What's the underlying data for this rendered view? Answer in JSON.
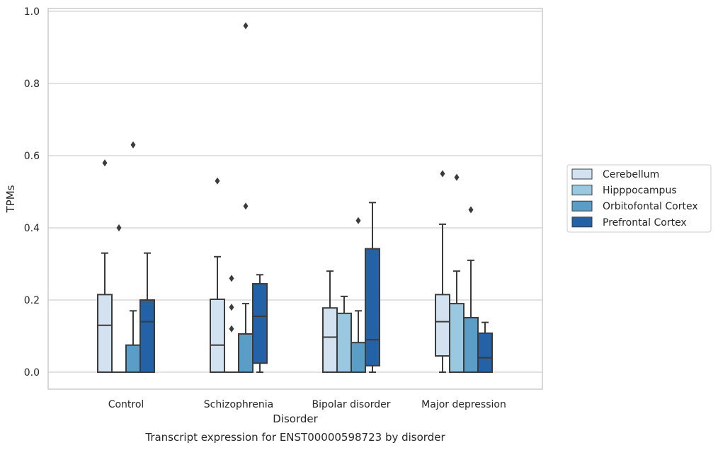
{
  "chart_data": {
    "type": "box",
    "title": "Transcript expression for ENST00000598723 by disorder",
    "xlabel": "Disorder",
    "ylabel": "TPMs",
    "ylim": [
      -0.045,
      1.01
    ],
    "yticks": [
      "0.0",
      "0.2",
      "0.4",
      "0.6",
      "0.8",
      "1.0"
    ],
    "categories": [
      "Control",
      "Schizophrenia",
      "Bipolar disorder",
      "Major depression"
    ],
    "grid": true,
    "legend_position": "right",
    "series": [
      {
        "name": "Cerebellum",
        "color": "#d2e2f1",
        "boxes": [
          {
            "min": 0.0,
            "q1": 0.0,
            "median": 0.13,
            "q3": 0.215,
            "max": 0.33,
            "outliers": [
              0.58
            ]
          },
          {
            "min": 0.0,
            "q1": 0.0,
            "median": 0.075,
            "q3": 0.202,
            "max": 0.32,
            "outliers": [
              0.53
            ]
          },
          {
            "min": 0.0,
            "q1": 0.0,
            "median": 0.097,
            "q3": 0.178,
            "max": 0.28,
            "outliers": []
          },
          {
            "min": 0.0,
            "q1": 0.045,
            "median": 0.14,
            "q3": 0.215,
            "max": 0.41,
            "outliers": [
              0.55
            ]
          }
        ]
      },
      {
        "name": "Hipppocampus",
        "color": "#9ac8e0",
        "boxes": [
          {
            "min": 0.0,
            "q1": 0.0,
            "median": 0.0,
            "q3": 0.0,
            "max": 0.0,
            "outliers": [
              0.4
            ]
          },
          {
            "min": 0.0,
            "q1": 0.0,
            "median": 0.0,
            "q3": 0.0,
            "max": 0.0,
            "outliers": [
              0.12,
              0.18,
              0.26
            ]
          },
          {
            "min": 0.0,
            "q1": 0.0,
            "median": 0.0,
            "q3": 0.163,
            "max": 0.21,
            "outliers": []
          },
          {
            "min": 0.0,
            "q1": 0.0,
            "median": 0.0,
            "q3": 0.19,
            "max": 0.28,
            "outliers": [
              0.54
            ]
          }
        ]
      },
      {
        "name": "Orbitofontal Cortex",
        "color": "#5a9ec8",
        "boxes": [
          {
            "min": 0.0,
            "q1": 0.0,
            "median": 0.0,
            "q3": 0.075,
            "max": 0.17,
            "outliers": [
              0.63
            ]
          },
          {
            "min": 0.0,
            "q1": 0.0,
            "median": 0.0,
            "q3": 0.106,
            "max": 0.19,
            "outliers": [
              0.96,
              0.46
            ]
          },
          {
            "min": 0.0,
            "q1": 0.0,
            "median": 0.0,
            "q3": 0.082,
            "max": 0.17,
            "outliers": [
              0.42
            ]
          },
          {
            "min": 0.0,
            "q1": 0.0,
            "median": 0.0,
            "q3": 0.151,
            "max": 0.31,
            "outliers": [
              0.45
            ]
          }
        ]
      },
      {
        "name": "Prefrontal Cortex",
        "color": "#2462a7",
        "boxes": [
          {
            "min": 0.0,
            "q1": 0.0,
            "median": 0.14,
            "q3": 0.2,
            "max": 0.33,
            "outliers": []
          },
          {
            "min": 0.0,
            "q1": 0.025,
            "median": 0.155,
            "q3": 0.245,
            "max": 0.27,
            "outliers": []
          },
          {
            "min": 0.0,
            "q1": 0.018,
            "median": 0.09,
            "q3": 0.342,
            "max": 0.47,
            "outliers": []
          },
          {
            "min": 0.0,
            "q1": 0.0,
            "median": 0.04,
            "q3": 0.108,
            "max": 0.138,
            "outliers": []
          }
        ]
      }
    ]
  }
}
